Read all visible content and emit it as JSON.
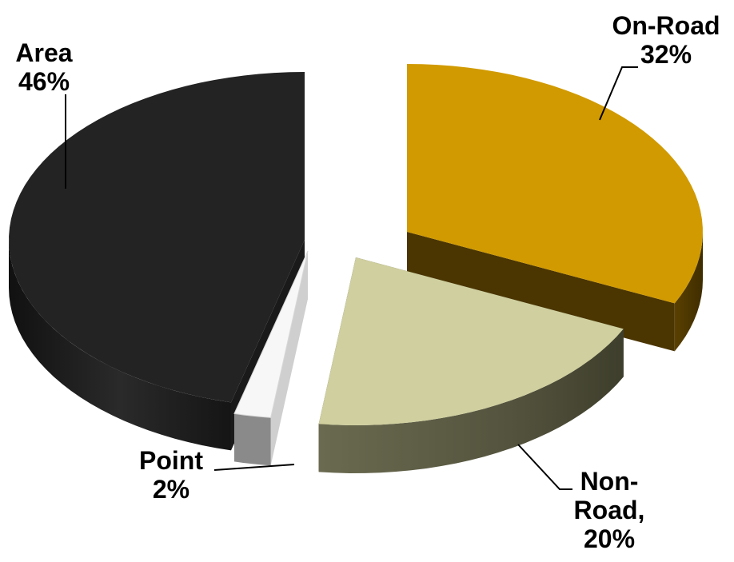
{
  "chart_data": {
    "type": "pie",
    "style": "3d-exploded",
    "slices": [
      {
        "name": "On-Road",
        "display_name": "On-Road",
        "value_label": "32%",
        "value": 32,
        "color": "#D19A00"
      },
      {
        "name": "Non-Road",
        "display_name": [
          "Non-",
          "Road,"
        ],
        "value_label": "20%",
        "value": 20,
        "color": "#CFCF9F"
      },
      {
        "name": "Point",
        "display_name": "Point",
        "value_label": "2%",
        "value": 2,
        "color": "#F7F7F7"
      },
      {
        "name": "Area",
        "display_name": "Area",
        "value_label": "46%",
        "value": 46,
        "color": "#232323"
      }
    ],
    "legend": "none",
    "title": ""
  }
}
